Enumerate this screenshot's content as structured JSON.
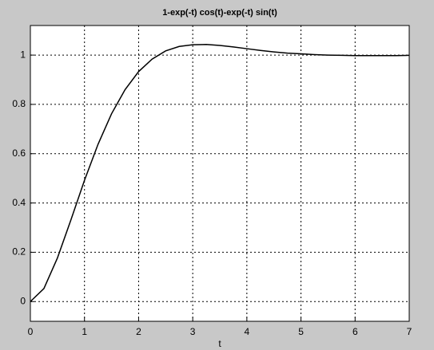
{
  "chart_data": {
    "type": "line",
    "title": "1-exp(-t) cos(t)-exp(-t) sin(t)",
    "x_label": "t",
    "x": [
      0,
      0.25,
      0.5,
      0.75,
      1,
      1.25,
      1.5,
      1.75,
      2,
      2.25,
      2.5,
      2.75,
      3,
      3.25,
      3.5,
      3.75,
      4,
      4.25,
      4.5,
      4.75,
      5,
      5.25,
      5.5,
      5.75,
      6,
      6.25,
      6.5,
      6.75,
      7
    ],
    "series": [
      {
        "color": "#000000",
        "values": [
          0,
          0.053,
          0.177,
          0.332,
          0.492,
          0.638,
          0.762,
          0.86,
          0.933,
          0.984,
          1.017,
          1.035,
          1.042,
          1.043,
          1.039,
          1.033,
          1.026,
          1.019,
          1.013,
          1.008,
          1.005,
          1.002,
          1.0,
          0.999,
          0.998,
          0.998,
          0.998,
          0.998,
          0.999
        ]
      }
    ],
    "xlim": [
      0,
      7
    ],
    "xticks": [
      0,
      1,
      2,
      3,
      4,
      5,
      6,
      7
    ],
    "ylim": [
      -0.08,
      1.12
    ],
    "yticks": [
      0,
      0.2,
      0.4,
      0.6,
      0.8,
      1
    ],
    "grid": true
  }
}
